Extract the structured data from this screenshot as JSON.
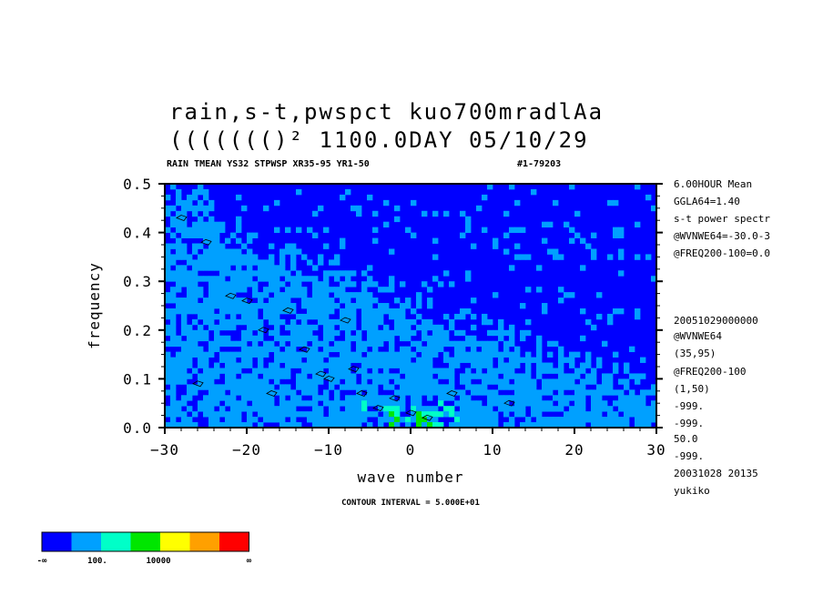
{
  "title": {
    "line1": "rain,s-t,pwspct  kuo700mradlAa",
    "line2": "((((((()²   1100.0DAY 05/10/29",
    "subtitle": "RAIN TMEAN YS32 STPWSP XR35-95 YR1-50",
    "run_id": "#1-79203"
  },
  "side_info": [
    "6.00HOUR Mean",
    "GGLA64=1.40",
    "s-t power spectr",
    "@WVNWE64=-30.0-3",
    "@FREQ200-100=0.0",
    "",
    "20051029000000",
    "@WVNWE64",
    "(35,95)",
    "@FREQ200-100",
    "(1,50)",
    "-999.",
    "-999.",
    "50.0",
    "-999.",
    "20031028  20135",
    "yukiko"
  ],
  "contour_interval": "CONTOUR INTERVAL = 5.000E+01",
  "colors": {
    "c0": "#0000ff",
    "c1": "#00a0ff",
    "c2": "#00ffc8",
    "c3": "#00e600",
    "c4": "#ffff00",
    "c5": "#ffa000",
    "c6": "#ff0000"
  },
  "legend": {
    "colors": [
      "#0000ff",
      "#00a0ff",
      "#00ffc8",
      "#00e600",
      "#ffff00",
      "#ffa000",
      "#ff0000"
    ],
    "labels": [
      "-∞",
      "100.",
      "10000",
      "∞"
    ]
  },
  "chart_data": {
    "type": "heatmap",
    "xlabel": "wave number",
    "ylabel": "frequency",
    "xlim": [
      -30,
      30
    ],
    "ylim": [
      0.0,
      0.5
    ],
    "xticks": [
      -30,
      -20,
      -10,
      0,
      10,
      20,
      30
    ],
    "yticks": [
      0.0,
      0.1,
      0.2,
      0.3,
      0.4,
      0.5
    ],
    "xtick_labels": [
      "−30",
      "−20",
      "−10",
      "0",
      "10",
      "20",
      "30"
    ],
    "ytick_labels": [
      "0.0",
      "0.1",
      "0.2",
      "0.3",
      "0.4",
      "0.5"
    ],
    "levels": [
      "-∞",
      "100.",
      "10000",
      "∞"
    ],
    "description_regions": [
      {
        "level": 1,
        "note": "light-blue band, broad over low frequencies and negative wave numbers"
      },
      {
        "level": 0,
        "note": "dark blue background"
      },
      {
        "level": 2,
        "note": "sparse cyan/green near wave number 0, frequency < 0.05"
      }
    ]
  }
}
